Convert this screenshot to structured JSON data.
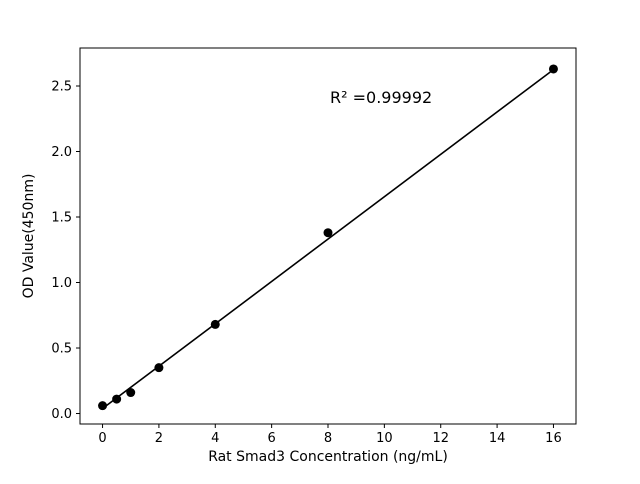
{
  "chart_data": {
    "type": "scatter",
    "title": "",
    "xlabel": "Rat Smad3 Concentration (ng/mL)",
    "ylabel": "OD Value(450nm)",
    "x": [
      0,
      0.5,
      1,
      2,
      4,
      8,
      16
    ],
    "y": [
      0.06,
      0.11,
      0.16,
      0.35,
      0.68,
      1.38,
      2.63
    ],
    "fit_line": {
      "slope": 0.1617,
      "intercept": 0.038,
      "x_start": 0,
      "x_end": 16
    },
    "annotation": "R² =0.99992",
    "x_ticks": [
      0,
      2,
      4,
      6,
      8,
      10,
      12,
      14,
      16
    ],
    "y_ticks": [
      0.0,
      0.5,
      1.0,
      1.5,
      2.0,
      2.5
    ],
    "xlim": [
      -0.8,
      16.8
    ],
    "ylim": [
      -0.08,
      2.79
    ],
    "grid": false,
    "legend": "none",
    "marker_color": "#000000",
    "line_color": "#000000",
    "axis_color": "#000000"
  }
}
